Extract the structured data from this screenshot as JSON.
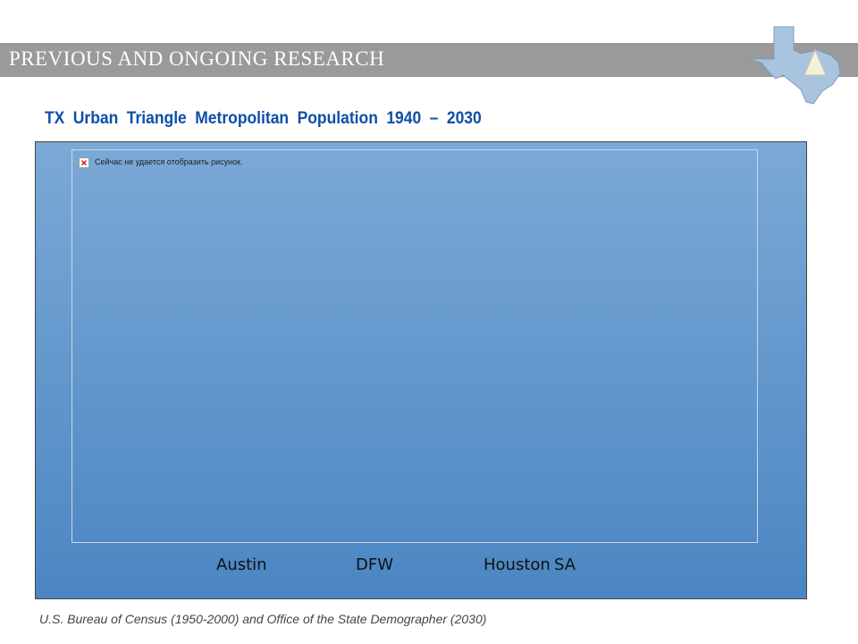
{
  "header": {
    "title": "Previous and Ongoing Research"
  },
  "slide": {
    "title": "TX Urban Triangle Metropolitan Population 1940 – 2030"
  },
  "chart": {
    "broken_image_text": "Сейчас не удается отобразить рисунок.",
    "categories": [
      "Austin",
      "DFW",
      "Houston",
      "SA"
    ]
  },
  "footer": {
    "source": "U.S. Bureau of Census (1950-2000) and Office of the State Demographer (2030)"
  },
  "colors": {
    "header_bar": "#9a9a9a",
    "title_blue": "#0d4fa8",
    "panel_top": "#7ba9d7",
    "panel_bottom": "#4b86c2",
    "logo_texas": "#a9c4de",
    "logo_triangle": "#f3f1da"
  }
}
